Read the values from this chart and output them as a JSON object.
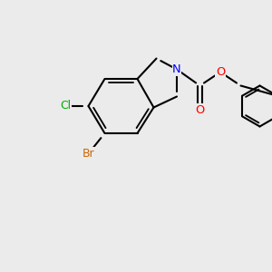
{
  "bg_color": "#ebebeb",
  "bond_color": "#000000",
  "bond_width": 1.5,
  "atom_colors": {
    "N": "#0000ff",
    "O": "#ff0000",
    "Cl": "#00aa00",
    "Br": "#cc6600",
    "C": "#000000"
  },
  "font_size": 8.5
}
